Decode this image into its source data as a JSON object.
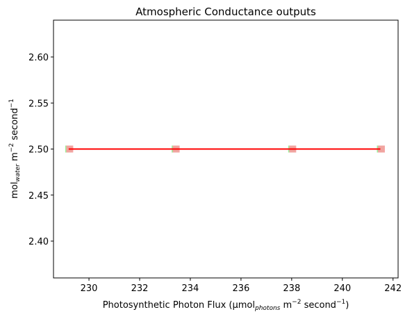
{
  "chart_data": {
    "type": "scatter",
    "title": "Atmospheric Conductance outputs",
    "xlabel": {
      "pre": "Photosynthetic Photon Flux (µmol",
      "sub": "photons",
      "mid": " m",
      "sup1": "−2",
      "mid2": " second",
      "sup2": "−1",
      "post": ")"
    },
    "ylabel": {
      "pre": "mol",
      "sub": "water",
      "mid": " m",
      "sup1": "−2",
      "mid2": " second",
      "sup2": "−1"
    },
    "xlim": [
      228.6,
      242.2
    ],
    "ylim": [
      2.36,
      2.64
    ],
    "xticks": [
      230,
      232,
      234,
      236,
      238,
      240,
      242
    ],
    "yticks": [
      2.4,
      2.45,
      2.5,
      2.55,
      2.6
    ],
    "series": [
      {
        "kind": "scatter",
        "marker": "square",
        "color": "#90ee90",
        "x": [
          229.2,
          233.4,
          238.0,
          241.5
        ],
        "y": [
          2.5,
          2.5,
          2.5,
          2.5
        ]
      },
      {
        "kind": "scatter",
        "marker": "square",
        "color": "#f4a0a0",
        "x": [
          229.2,
          233.4,
          238.0,
          241.5
        ],
        "y": [
          2.5,
          2.5,
          2.5,
          2.5
        ]
      },
      {
        "kind": "line",
        "color": "#ff0000",
        "x": [
          229.2,
          241.5
        ],
        "y": [
          2.5,
          2.5
        ]
      }
    ],
    "grid": false
  }
}
